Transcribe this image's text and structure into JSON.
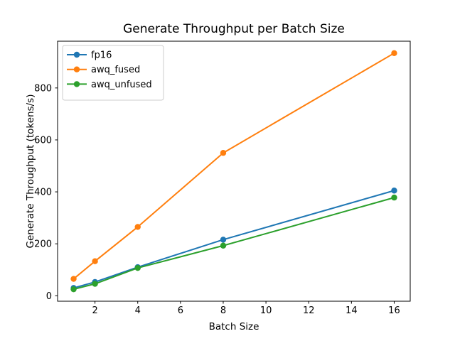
{
  "chart_data": {
    "type": "line",
    "title": "Generate Throughput per Batch Size",
    "xlabel": "Batch Size",
    "ylabel": "Generate Throughput (tokens/s)",
    "x": [
      1,
      2,
      4,
      8,
      16
    ],
    "series": [
      {
        "name": "fp16",
        "color": "#1f77b4",
        "values": [
          30,
          53,
          110,
          216,
          405
        ]
      },
      {
        "name": "awq_fused",
        "color": "#ff7f0e",
        "values": [
          65,
          133,
          265,
          550,
          934
        ]
      },
      {
        "name": "awq_unfused",
        "color": "#2ca02c",
        "values": [
          25,
          46,
          107,
          193,
          378
        ]
      }
    ],
    "xticks": [
      2,
      4,
      6,
      8,
      10,
      12,
      14,
      16
    ],
    "yticks": [
      0,
      200,
      400,
      600,
      800
    ],
    "xlim": [
      0.25,
      16.75
    ],
    "ylim": [
      -21,
      980
    ],
    "grid": false,
    "legend_position": "upper left",
    "marker": "o",
    "background": "#ffffff",
    "spine_color": "#000000",
    "legend_border_color": "#cccccc"
  }
}
